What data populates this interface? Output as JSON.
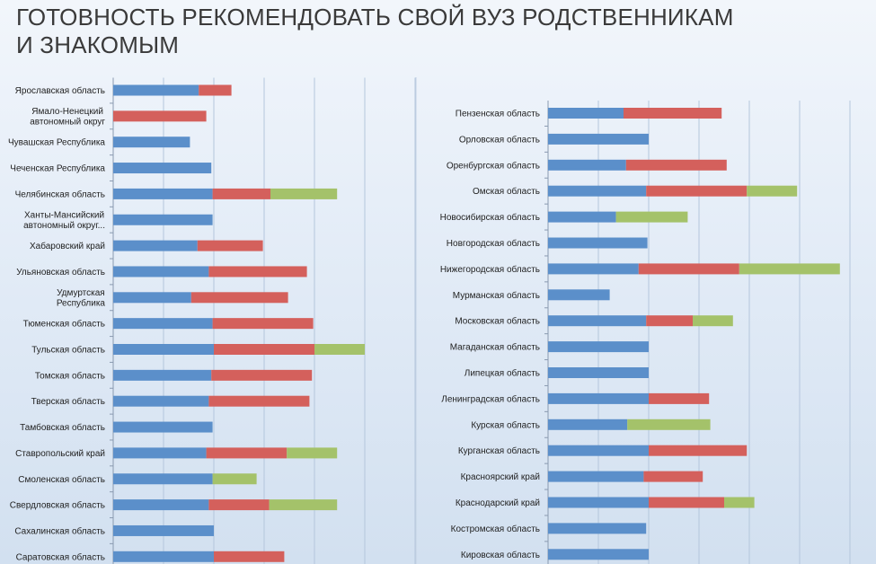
{
  "title_lines": [
    "ГОТОВНОСТЬ РЕКОМЕНДОВАТЬ СВОЙ ВУЗ РОДСТВЕННИКАМ",
    "И ЗНАКОМЫМ"
  ],
  "colors": {
    "series_1": "#5b8fca",
    "series_2": "#d4605c",
    "series_3": "#a4c26a",
    "grid": "#b4c6dc"
  },
  "chart_data": [
    {
      "type": "bar",
      "orientation": "horizontal",
      "stacked": true,
      "grid": true,
      "categories": [
        "Ярославская область",
        "Ямало-Ненецкий автономный округ",
        "Чувашская Республика",
        "Чеченская Республика",
        "Челябинская область",
        "Ханты-Мансийский автономный округ...",
        "Хабаровский край",
        "Ульяновская область",
        "Удмуртская Республика",
        "Тюменская область",
        "Тульская область",
        "Томская область",
        "Тверская область",
        "Тамбовская область",
        "Ставропольский край",
        "Смоленская область",
        "Свердловская область",
        "Сахалинская область",
        "Саратовская область"
      ],
      "series": [
        {
          "values": [
            34,
            0,
            30.5,
            39,
            39.5,
            39.5,
            33.5,
            38,
            31,
            39.5,
            40,
            39,
            38,
            39.5,
            37,
            39.5,
            38,
            40,
            40
          ]
        },
        {
          "values": [
            13,
            37,
            0,
            0,
            23,
            0,
            26,
            39,
            38.5,
            40,
            40,
            40,
            40,
            0,
            32,
            0,
            24,
            0,
            28
          ]
        },
        {
          "values": [
            0,
            0,
            0,
            0,
            26.5,
            0,
            0,
            0,
            0,
            0,
            20,
            0,
            0,
            0,
            20,
            17.5,
            27,
            0,
            0
          ]
        }
      ]
    },
    {
      "type": "bar",
      "orientation": "horizontal",
      "stacked": true,
      "grid": true,
      "categories": [
        "Пензенская область",
        "Орловская область",
        "Оренбургская область",
        "Омская область",
        "Новосибирская область",
        "Новгородская область",
        "Нижегородская область",
        "Мурманская область",
        "Московская область",
        "Магаданская область",
        "Липецкая область",
        "Ленинградская область",
        "Курская область",
        "Курганская область",
        "Красноярский край",
        "Краснодарский край",
        "Костромская область",
        "Кировская область"
      ],
      "series": [
        {
          "values": [
            30,
            40,
            31,
            39,
            27,
            39.5,
            36,
            24.5,
            39,
            40,
            40,
            40,
            31.5,
            40,
            38,
            40,
            39,
            40
          ]
        },
        {
          "values": [
            39,
            0,
            40,
            40,
            0,
            0,
            40,
            0,
            18.5,
            0,
            0,
            24,
            0,
            39,
            23.5,
            30,
            0,
            0
          ]
        },
        {
          "values": [
            0,
            0,
            0,
            20,
            28.5,
            0,
            40,
            0,
            16,
            0,
            0,
            0,
            33,
            0,
            0,
            12,
            0,
            0
          ]
        }
      ]
    }
  ]
}
